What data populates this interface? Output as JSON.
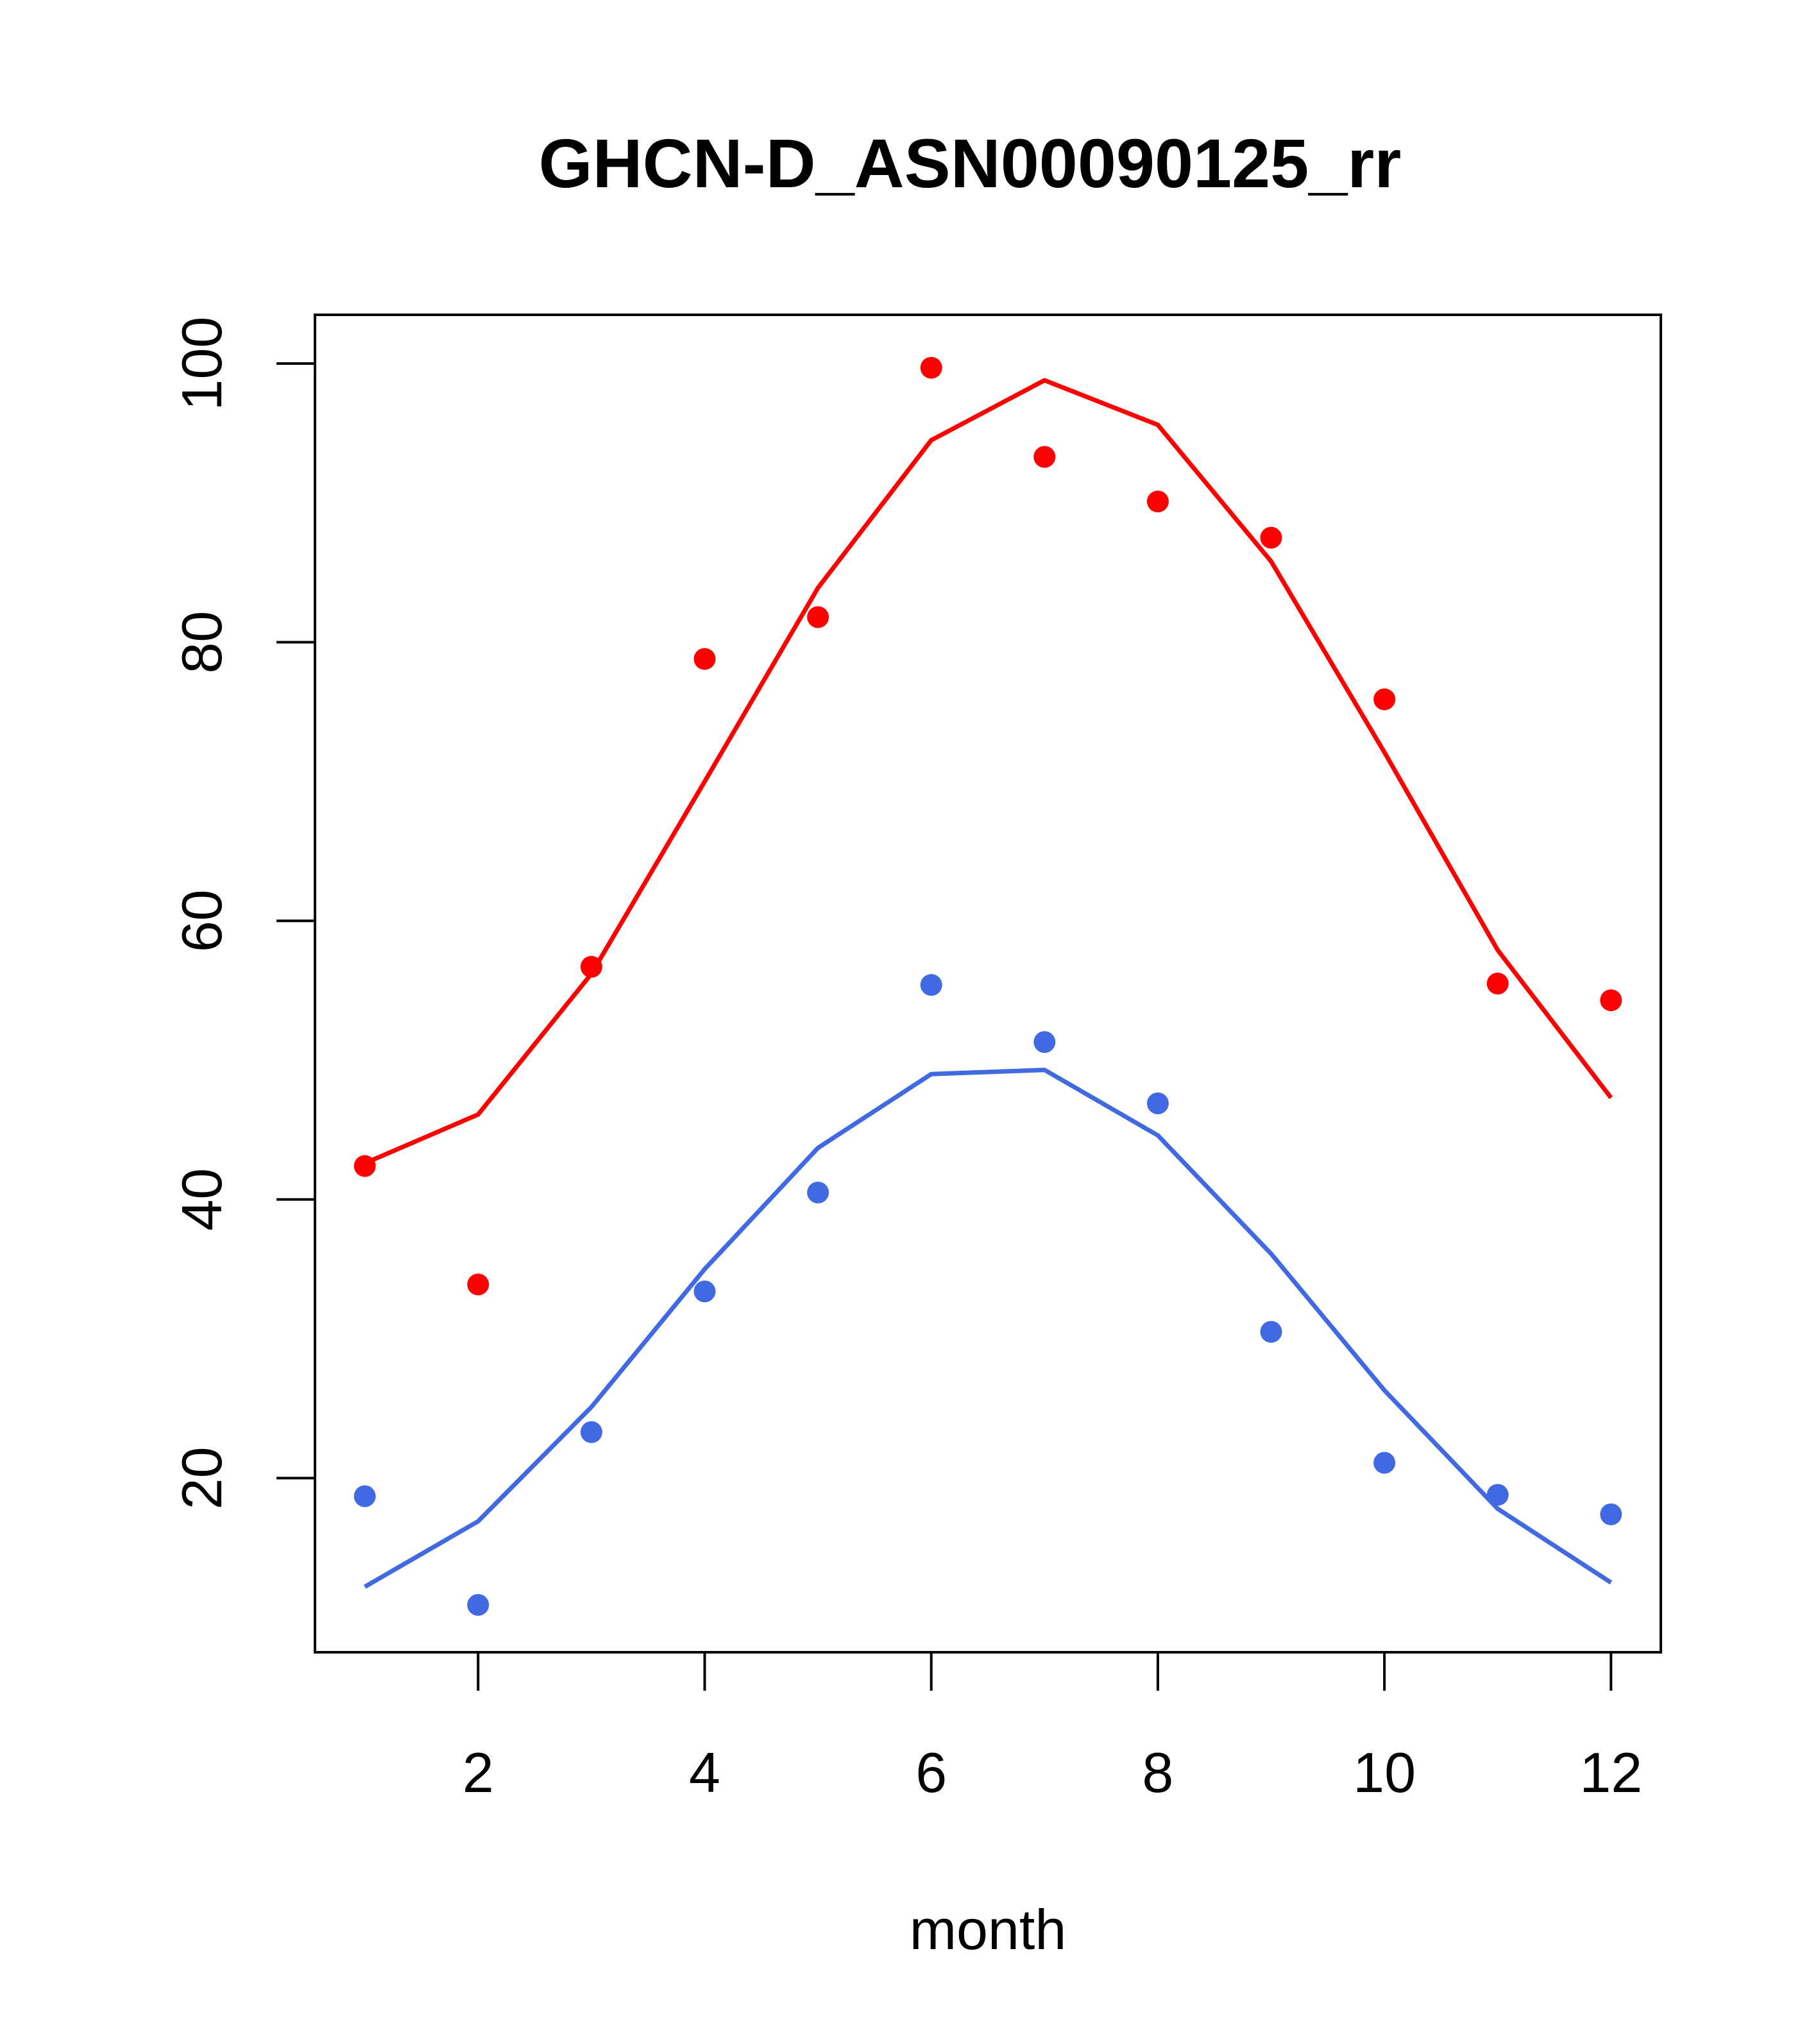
{
  "chart_data": {
    "type": "scatter",
    "title": "GHCN-D_ASN00090125_rr",
    "xlabel": "month",
    "ylabel": "",
    "xlim": [
      0.56,
      12.44
    ],
    "ylim": [
      7.5,
      103.5
    ],
    "x_ticks": [
      2,
      4,
      6,
      8,
      10,
      12
    ],
    "y_ticks": [
      20,
      40,
      60,
      80,
      100
    ],
    "grid": false,
    "series": [
      {
        "color": "#ff0000",
        "points": {
          "x": [
            1,
            2,
            3,
            4,
            5,
            6,
            7,
            8,
            9,
            10,
            11,
            12
          ],
          "y": [
            42.4,
            33.9,
            56.7,
            78.8,
            81.8,
            99.7,
            93.3,
            90.1,
            87.5,
            75.9,
            55.5,
            54.3
          ]
        },
        "line": {
          "x": [
            1,
            2,
            3,
            4,
            5,
            6,
            7,
            8,
            9,
            10,
            11,
            12
          ],
          "y": [
            42.6,
            46.1,
            56.2,
            70.0,
            83.9,
            94.5,
            98.8,
            95.6,
            85.8,
            72.1,
            57.9,
            47.3
          ]
        }
      },
      {
        "color": "#4169e1",
        "points": {
          "x": [
            1,
            2,
            3,
            4,
            5,
            6,
            7,
            8,
            9,
            10,
            11,
            12
          ],
          "y": [
            18.7,
            10.9,
            23.3,
            33.4,
            40.5,
            55.4,
            51.3,
            46.9,
            30.5,
            21.1,
            18.8,
            17.4
          ]
        },
        "line": {
          "x": [
            1,
            2,
            3,
            4,
            5,
            6,
            7,
            8,
            9,
            10,
            11,
            12
          ],
          "y": [
            12.2,
            16.9,
            25.1,
            35.0,
            43.7,
            49.0,
            49.3,
            44.6,
            36.1,
            26.3,
            17.8,
            12.5
          ]
        }
      }
    ]
  }
}
